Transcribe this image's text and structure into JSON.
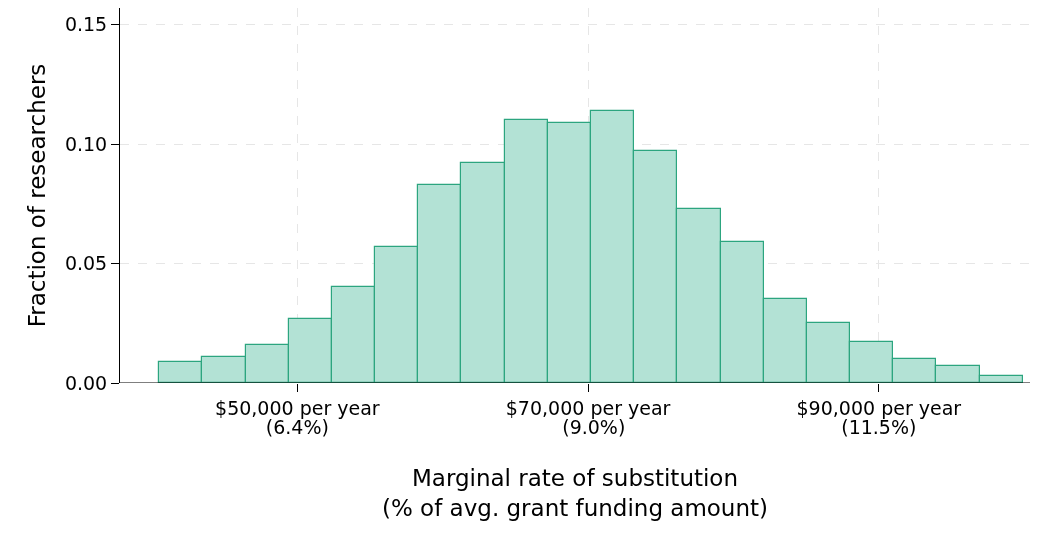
{
  "chart_data": {
    "type": "histogram",
    "xlabel": "Marginal rate of substitution\n(% of avg. grant funding amount)",
    "ylabel": "Fraction of researchers",
    "bins": [
      40500,
      43470,
      46440,
      49410,
      52380,
      55350,
      58320,
      61290,
      64260,
      67230,
      70200,
      73170,
      76140,
      79110,
      82080,
      85050,
      88020,
      90990,
      93960,
      96930,
      99900
    ],
    "values": [
      0.009,
      0.011,
      0.016,
      0.027,
      0.04,
      0.057,
      0.083,
      0.092,
      0.11,
      0.109,
      0.114,
      0.097,
      0.073,
      0.059,
      0.035,
      0.025,
      0.017,
      0.01,
      0.007,
      0.003
    ],
    "color": "#b3e2d5",
    "xlim": [
      37800,
      100400
    ],
    "xticks": [
      {
        "value": 50000,
        "label": "$50,000 per year"
      },
      {
        "value": 70000,
        "label": "$70,000 per year"
      },
      {
        "value": 90000,
        "label": "$90,000 per year"
      }
    ],
    "x2lim": [
      4.845,
      12.826
    ],
    "x2ticks": [
      {
        "value": 6.4,
        "label": "(6.4%)"
      },
      {
        "value": 9.0,
        "label": "(9.0%)"
      },
      {
        "value": 11.5,
        "label": "(11.5%)"
      }
    ],
    "ylim": [
      0,
      0.157
    ],
    "yticks": [
      {
        "value": 0,
        "label": "0.00"
      },
      {
        "value": 0.05,
        "label": "0.05"
      },
      {
        "value": 0.1,
        "label": "0.10"
      },
      {
        "value": 0.15,
        "label": "0.15"
      }
    ],
    "grid": true
  }
}
